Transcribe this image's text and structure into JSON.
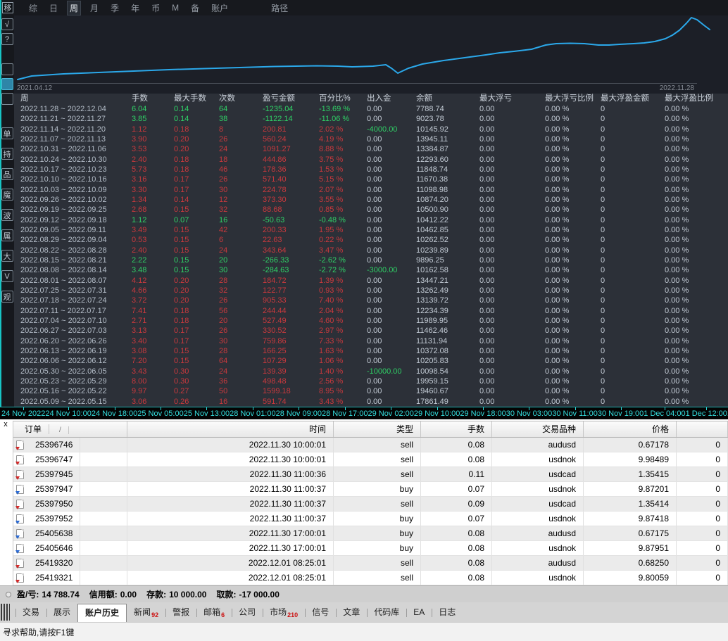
{
  "toolbar": {
    "move_button": "移",
    "items": [
      {
        "l": "综",
        "v": ""
      },
      {
        "l": "日",
        "v": ""
      },
      {
        "l": "周",
        "v": "active"
      },
      {
        "l": "月",
        "v": ""
      },
      {
        "l": "季",
        "v": ""
      },
      {
        "l": "年",
        "v": ""
      },
      {
        "l": "币",
        "v": ""
      },
      {
        "l": "M",
        "v": ""
      },
      {
        "l": "备",
        "v": ""
      },
      {
        "l": "账户",
        "v": ""
      }
    ],
    "path_label": "路径"
  },
  "sidebar": {
    "buttons": [
      {
        "l": "√",
        "v": ""
      },
      {
        "l": "?",
        "v": ""
      },
      {
        "l": "",
        "v": "gap"
      },
      {
        "l": "",
        "v": "active"
      },
      {
        "l": "",
        "v": ""
      },
      {
        "l": "单",
        "v": "gap2"
      },
      {
        "l": "持",
        "v": "lg"
      },
      {
        "l": "品",
        "v": "lg"
      },
      {
        "l": "魔",
        "v": "lg"
      },
      {
        "l": "波",
        "v": "lg"
      },
      {
        "l": "属",
        "v": "lg"
      },
      {
        "l": "大",
        "v": "lg"
      },
      {
        "l": "V",
        "v": "lg"
      },
      {
        "l": "观",
        "v": "lg"
      }
    ]
  },
  "chart_data": {
    "type": "line",
    "x_start_label": "2021.04.12",
    "x_end_label": "2022.11.28",
    "line_color": "#2ba8ea",
    "background": "#1c1f27",
    "legend": [],
    "grid": false,
    "series": [
      {
        "name": "余额 (weekly, most recent first)",
        "categories": [
          "2022.12.04",
          "2022.11.27",
          "2022.11.20",
          "2022.11.13",
          "2022.11.06",
          "2022.10.30",
          "2022.10.23",
          "2022.10.16",
          "2022.10.09",
          "2022.10.02",
          "2022.09.25",
          "2022.09.18",
          "2022.09.11",
          "2022.09.04",
          "2022.08.28",
          "2022.08.21",
          "2022.08.14",
          "2022.08.07",
          "2022.07.31",
          "2022.07.24",
          "2022.07.17",
          "2022.07.10",
          "2022.07.03",
          "2022.06.26",
          "2022.06.19",
          "2022.06.12",
          "2022.06.05",
          "2022.05.29",
          "2022.05.22",
          "2022.05.15"
        ],
        "values": [
          7788.74,
          9023.78,
          10145.92,
          13945.11,
          13384.87,
          12293.6,
          11848.74,
          11670.38,
          11098.98,
          10874.2,
          10500.9,
          10412.22,
          10462.85,
          10262.52,
          10239.89,
          9896.25,
          10162.58,
          13447.21,
          13262.49,
          13139.72,
          12234.39,
          11989.95,
          11462.46,
          11131.94,
          10372.08,
          10205.83,
          10098.54,
          19959.15,
          19460.67,
          17861.49
        ]
      }
    ],
    "curve_points": [
      [
        5,
        91
      ],
      [
        25,
        86
      ],
      [
        70,
        83
      ],
      [
        120,
        81
      ],
      [
        170,
        79
      ],
      [
        220,
        77
      ],
      [
        270,
        75.5
      ],
      [
        320,
        74
      ],
      [
        370,
        72.5
      ],
      [
        400,
        72
      ],
      [
        430,
        71.5
      ],
      [
        460,
        72
      ],
      [
        480,
        73
      ],
      [
        510,
        72
      ],
      [
        528,
        70
      ],
      [
        536,
        75
      ],
      [
        545,
        82
      ],
      [
        560,
        75
      ],
      [
        580,
        69
      ],
      [
        610,
        64
      ],
      [
        640,
        60
      ],
      [
        670,
        56
      ],
      [
        690,
        53
      ],
      [
        710,
        51
      ],
      [
        735,
        48
      ],
      [
        755,
        42
      ],
      [
        770,
        40
      ],
      [
        790,
        39.5
      ],
      [
        810,
        40
      ],
      [
        830,
        42
      ],
      [
        845,
        42
      ],
      [
        860,
        41
      ],
      [
        880,
        40
      ],
      [
        895,
        39
      ],
      [
        910,
        37
      ],
      [
        925,
        33
      ],
      [
        935,
        28
      ],
      [
        945,
        21
      ],
      [
        955,
        11
      ],
      [
        962,
        3
      ],
      [
        970,
        6
      ],
      [
        980,
        14
      ],
      [
        988,
        20
      ]
    ]
  },
  "weekly_table": {
    "headers": [
      "周",
      "手数",
      "最大手数",
      "次数",
      "盈亏金额",
      "百分比%",
      "出入金",
      "余额",
      "最大浮亏",
      "最大浮亏比例",
      "最大浮盈金额",
      "最大浮盈比例"
    ],
    "const": {
      "dd": "0.00",
      "ddpct": "0.00 %",
      "fp": "0",
      "fppct": "0.00 %"
    },
    "rows": [
      {
        "w": "2022.11.28 ~ 2022.12.04",
        "lots": "6.04",
        "ml": "0.14",
        "n": "64",
        "pl": "-1235.04",
        "pct": "-13.69 %",
        "io": "0.00",
        "bal": "7788.74",
        "cls": "green",
        "iocls": ""
      },
      {
        "w": "2022.11.21 ~ 2022.11.27",
        "lots": "3.85",
        "ml": "0.14",
        "n": "38",
        "pl": "-1122.14",
        "pct": "-11.06 %",
        "io": "0.00",
        "bal": "9023.78",
        "cls": "green",
        "iocls": ""
      },
      {
        "w": "2022.11.14 ~ 2022.11.20",
        "lots": "1.12",
        "ml": "0.18",
        "n": "8",
        "pl": "200.81",
        "pct": "2.02 %",
        "io": "-4000.00",
        "bal": "10145.92",
        "cls": "red",
        "iocls": "green"
      },
      {
        "w": "2022.11.07 ~ 2022.11.13",
        "lots": "3.90",
        "ml": "0.20",
        "n": "26",
        "pl": "560.24",
        "pct": "4.19 %",
        "io": "0.00",
        "bal": "13945.11",
        "cls": "red",
        "iocls": ""
      },
      {
        "w": "2022.10.31 ~ 2022.11.06",
        "lots": "3.53",
        "ml": "0.20",
        "n": "24",
        "pl": "1091.27",
        "pct": "8.88 %",
        "io": "0.00",
        "bal": "13384.87",
        "cls": "red",
        "iocls": ""
      },
      {
        "w": "2022.10.24 ~ 2022.10.30",
        "lots": "2.40",
        "ml": "0.18",
        "n": "18",
        "pl": "444.86",
        "pct": "3.75 %",
        "io": "0.00",
        "bal": "12293.60",
        "cls": "red",
        "iocls": ""
      },
      {
        "w": "2022.10.17 ~ 2022.10.23",
        "lots": "5.73",
        "ml": "0.18",
        "n": "46",
        "pl": "178.36",
        "pct": "1.53 %",
        "io": "0.00",
        "bal": "11848.74",
        "cls": "red",
        "iocls": ""
      },
      {
        "w": "2022.10.10 ~ 2022.10.16",
        "lots": "3.16",
        "ml": "0.17",
        "n": "26",
        "pl": "571.40",
        "pct": "5.15 %",
        "io": "0.00",
        "bal": "11670.38",
        "cls": "red",
        "iocls": ""
      },
      {
        "w": "2022.10.03 ~ 2022.10.09",
        "lots": "3.30",
        "ml": "0.17",
        "n": "30",
        "pl": "224.78",
        "pct": "2.07 %",
        "io": "0.00",
        "bal": "11098.98",
        "cls": "red",
        "iocls": ""
      },
      {
        "w": "2022.09.26 ~ 2022.10.02",
        "lots": "1.34",
        "ml": "0.14",
        "n": "12",
        "pl": "373.30",
        "pct": "3.55 %",
        "io": "0.00",
        "bal": "10874.20",
        "cls": "red",
        "iocls": ""
      },
      {
        "w": "2022.09.19 ~ 2022.09.25",
        "lots": "2.68",
        "ml": "0.15",
        "n": "32",
        "pl": "88.68",
        "pct": "0.85 %",
        "io": "0.00",
        "bal": "10500.90",
        "cls": "red",
        "iocls": ""
      },
      {
        "w": "2022.09.12 ~ 2022.09.18",
        "lots": "1.12",
        "ml": "0.07",
        "n": "16",
        "pl": "-50.63",
        "pct": "-0.48 %",
        "io": "0.00",
        "bal": "10412.22",
        "cls": "green",
        "iocls": ""
      },
      {
        "w": "2022.09.05 ~ 2022.09.11",
        "lots": "3.49",
        "ml": "0.15",
        "n": "42",
        "pl": "200.33",
        "pct": "1.95 %",
        "io": "0.00",
        "bal": "10462.85",
        "cls": "red",
        "iocls": ""
      },
      {
        "w": "2022.08.29 ~ 2022.09.04",
        "lots": "0.53",
        "ml": "0.15",
        "n": "6",
        "pl": "22.63",
        "pct": "0.22 %",
        "io": "0.00",
        "bal": "10262.52",
        "cls": "red",
        "iocls": ""
      },
      {
        "w": "2022.08.22 ~ 2022.08.28",
        "lots": "2.40",
        "ml": "0.15",
        "n": "24",
        "pl": "343.64",
        "pct": "3.47 %",
        "io": "0.00",
        "bal": "10239.89",
        "cls": "red",
        "iocls": ""
      },
      {
        "w": "2022.08.15 ~ 2022.08.21",
        "lots": "2.22",
        "ml": "0.15",
        "n": "20",
        "pl": "-266.33",
        "pct": "-2.62 %",
        "io": "0.00",
        "bal": "9896.25",
        "cls": "green",
        "iocls": ""
      },
      {
        "w": "2022.08.08 ~ 2022.08.14",
        "lots": "3.48",
        "ml": "0.15",
        "n": "30",
        "pl": "-284.63",
        "pct": "-2.72 %",
        "io": "-3000.00",
        "bal": "10162.58",
        "cls": "green",
        "iocls": "green"
      },
      {
        "w": "2022.08.01 ~ 2022.08.07",
        "lots": "4.12",
        "ml": "0.20",
        "n": "28",
        "pl": "184.72",
        "pct": "1.39 %",
        "io": "0.00",
        "bal": "13447.21",
        "cls": "red",
        "iocls": ""
      },
      {
        "w": "2022.07.25 ~ 2022.07.31",
        "lots": "4.66",
        "ml": "0.20",
        "n": "32",
        "pl": "122.77",
        "pct": "0.93 %",
        "io": "0.00",
        "bal": "13262.49",
        "cls": "red",
        "iocls": ""
      },
      {
        "w": "2022.07.18 ~ 2022.07.24",
        "lots": "3.72",
        "ml": "0.20",
        "n": "26",
        "pl": "905.33",
        "pct": "7.40 %",
        "io": "0.00",
        "bal": "13139.72",
        "cls": "red",
        "iocls": ""
      },
      {
        "w": "2022.07.11 ~ 2022.07.17",
        "lots": "7.41",
        "ml": "0.18",
        "n": "56",
        "pl": "244.44",
        "pct": "2.04 %",
        "io": "0.00",
        "bal": "12234.39",
        "cls": "red",
        "iocls": ""
      },
      {
        "w": "2022.07.04 ~ 2022.07.10",
        "lots": "2.71",
        "ml": "0.18",
        "n": "20",
        "pl": "527.49",
        "pct": "4.60 %",
        "io": "0.00",
        "bal": "11989.95",
        "cls": "red",
        "iocls": ""
      },
      {
        "w": "2022.06.27 ~ 2022.07.03",
        "lots": "3.13",
        "ml": "0.17",
        "n": "26",
        "pl": "330.52",
        "pct": "2.97 %",
        "io": "0.00",
        "bal": "11462.46",
        "cls": "red",
        "iocls": ""
      },
      {
        "w": "2022.06.20 ~ 2022.06.26",
        "lots": "3.40",
        "ml": "0.17",
        "n": "30",
        "pl": "759.86",
        "pct": "7.33 %",
        "io": "0.00",
        "bal": "11131.94",
        "cls": "red",
        "iocls": ""
      },
      {
        "w": "2022.06.13 ~ 2022.06.19",
        "lots": "3.08",
        "ml": "0.15",
        "n": "28",
        "pl": "166.25",
        "pct": "1.63 %",
        "io": "0.00",
        "bal": "10372.08",
        "cls": "red",
        "iocls": ""
      },
      {
        "w": "2022.06.06 ~ 2022.06.12",
        "lots": "7.20",
        "ml": "0.15",
        "n": "64",
        "pl": "107.29",
        "pct": "1.06 %",
        "io": "0.00",
        "bal": "10205.83",
        "cls": "red",
        "iocls": ""
      },
      {
        "w": "2022.05.30 ~ 2022.06.05",
        "lots": "3.43",
        "ml": "0.30",
        "n": "24",
        "pl": "139.39",
        "pct": "1.40 %",
        "io": "-10000.00",
        "bal": "10098.54",
        "cls": "red",
        "iocls": "green"
      },
      {
        "w": "2022.05.23 ~ 2022.05.29",
        "lots": "8.00",
        "ml": "0.30",
        "n": "36",
        "pl": "498.48",
        "pct": "2.56 %",
        "io": "0.00",
        "bal": "19959.15",
        "cls": "red",
        "iocls": ""
      },
      {
        "w": "2022.05.16 ~ 2022.05.22",
        "lots": "9.97",
        "ml": "0.27",
        "n": "50",
        "pl": "1599.18",
        "pct": "8.95 %",
        "io": "0.00",
        "bal": "19460.67",
        "cls": "red",
        "iocls": ""
      },
      {
        "w": "2022.05.09 ~ 2022.05.15",
        "lots": "3.06",
        "ml": "0.26",
        "n": "16",
        "pl": "591.74",
        "pct": "3.43 %",
        "io": "0.00",
        "bal": "17861.49",
        "cls": "red",
        "iocls": ""
      }
    ]
  },
  "timeline": {
    "labels": [
      {
        "t": "24 Nov 2022"
      },
      {
        "t": "24 Nov 10:00"
      },
      {
        "t": "24 Nov 18:00"
      },
      {
        "t": "25 Nov 05:00"
      },
      {
        "t": "25 Nov 13:00"
      },
      {
        "t": "28 Nov 01:00"
      },
      {
        "t": "28 Nov 09:00"
      },
      {
        "t": "28 Nov 17:00"
      },
      {
        "t": "29 Nov 02:00"
      },
      {
        "t": "29 Nov 10:00"
      },
      {
        "t": "29 Nov 18:00"
      },
      {
        "t": "30 Nov 03:00"
      },
      {
        "t": "30 Nov 11:00"
      },
      {
        "t": "30 Nov 19:00"
      },
      {
        "t": "1 Dec 04:00"
      },
      {
        "t": "1 Dec 12:00"
      },
      {
        "t": "1 D"
      }
    ]
  },
  "orders": {
    "close_label": "x",
    "headers": {
      "order": "订单",
      "sort": "/",
      "time": "时间",
      "type": "类型",
      "lots": "手数",
      "symbol": "交易品种",
      "price": "价格",
      "extra": ""
    },
    "const_extra": "0",
    "rows": [
      {
        "id": "25396746",
        "time": "2022.11.30 10:00:01",
        "type": "sell",
        "lots": "0.08",
        "symbol": "audusd",
        "price": "0.67178"
      },
      {
        "id": "25396747",
        "time": "2022.11.30 10:00:01",
        "type": "sell",
        "lots": "0.08",
        "symbol": "usdnok",
        "price": "9.98489"
      },
      {
        "id": "25397945",
        "time": "2022.11.30 11:00:36",
        "type": "sell",
        "lots": "0.11",
        "symbol": "usdcad",
        "price": "1.35415"
      },
      {
        "id": "25397947",
        "time": "2022.11.30 11:00:37",
        "type": "buy",
        "lots": "0.07",
        "symbol": "usdnok",
        "price": "9.87201"
      },
      {
        "id": "25397950",
        "time": "2022.11.30 11:00:37",
        "type": "sell",
        "lots": "0.09",
        "symbol": "usdcad",
        "price": "1.35414"
      },
      {
        "id": "25397952",
        "time": "2022.11.30 11:00:37",
        "type": "buy",
        "lots": "0.07",
        "symbol": "usdnok",
        "price": "9.87418"
      },
      {
        "id": "25405638",
        "time": "2022.11.30 17:00:01",
        "type": "buy",
        "lots": "0.08",
        "symbol": "audusd",
        "price": "0.67175"
      },
      {
        "id": "25405646",
        "time": "2022.11.30 17:00:01",
        "type": "buy",
        "lots": "0.08",
        "symbol": "usdnok",
        "price": "9.87951"
      },
      {
        "id": "25419320",
        "time": "2022.12.01 08:25:01",
        "type": "sell",
        "lots": "0.08",
        "symbol": "audusd",
        "price": "0.68250"
      },
      {
        "id": "25419321",
        "time": "2022.12.01 08:25:01",
        "type": "sell",
        "lots": "0.08",
        "symbol": "usdnok",
        "price": "9.80059"
      }
    ]
  },
  "summary": {
    "pl_label": "盈/亏:",
    "pl": "14 788.74",
    "credit_label": "信用额:",
    "credit": "0.00",
    "deposit_label": "存款:",
    "deposit": "10 000.00",
    "withdraw_label": "取款:",
    "withdraw": "-17 000.00"
  },
  "tabs": {
    "items": [
      {
        "l": "交易",
        "badge": "",
        "v": ""
      },
      {
        "l": "展示",
        "badge": "",
        "v": ""
      },
      {
        "l": "账户历史",
        "badge": "",
        "v": "active"
      },
      {
        "l": "新闻",
        "badge": "92",
        "v": ""
      },
      {
        "l": "警报",
        "badge": "",
        "v": ""
      },
      {
        "l": "邮箱",
        "badge": "6",
        "v": ""
      },
      {
        "l": "公司",
        "badge": "",
        "v": ""
      },
      {
        "l": "市场",
        "badge": "210",
        "v": ""
      },
      {
        "l": "信号",
        "badge": "",
        "v": ""
      },
      {
        "l": "文章",
        "badge": "",
        "v": ""
      },
      {
        "l": "代码库",
        "badge": "",
        "v": ""
      },
      {
        "l": "EA",
        "badge": "",
        "v": ""
      },
      {
        "l": "日志",
        "badge": "",
        "v": ""
      }
    ]
  },
  "statusbar": {
    "help": "寻求帮助,请按F1键"
  }
}
